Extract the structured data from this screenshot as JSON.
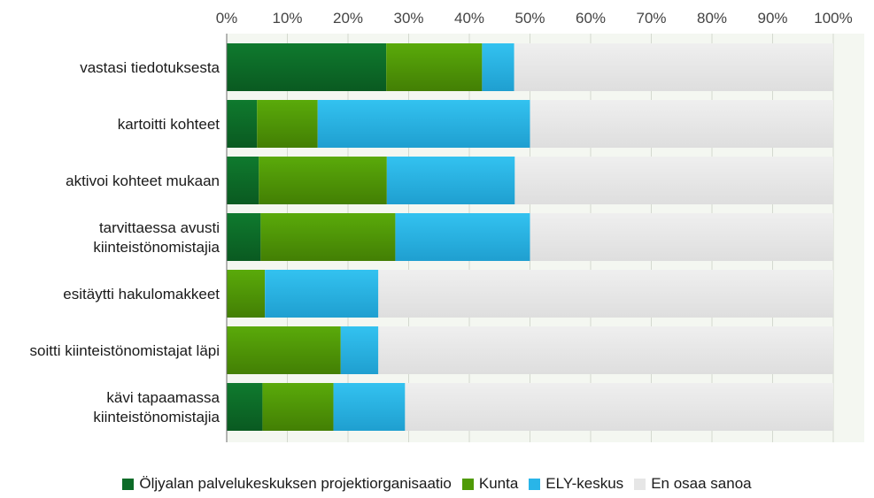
{
  "chart_data": {
    "type": "bar",
    "orientation": "horizontal",
    "stacked": true,
    "normalized": true,
    "title": "",
    "xlabel": "",
    "ylabel": "",
    "xlim": [
      0,
      100
    ],
    "x_ticks": [
      "0%",
      "10%",
      "20%",
      "30%",
      "40%",
      "50%",
      "60%",
      "70%",
      "80%",
      "90%",
      "100%"
    ],
    "grid": true,
    "legend_position": "bottom",
    "categories": [
      [
        "vastasi tiedotuksesta"
      ],
      [
        "kartoitti kohteet"
      ],
      [
        "aktivoi kohteet mukaan"
      ],
      [
        "tarvittaessa avusti",
        "kiinteistönomistajia"
      ],
      [
        "esitäytti hakulomakkeet"
      ],
      [
        "soitti kiinteistönomistajat läpi"
      ],
      [
        "kävi tapaamassa",
        "kiinteistönomistajia"
      ]
    ],
    "series": [
      {
        "name": "Öljyalan palvelukeskuksen projektiorganisaatio",
        "color": "#0c6b28",
        "values": [
          26.3,
          5.0,
          5.3,
          5.6,
          0,
          0,
          5.9
        ]
      },
      {
        "name": "Kunta",
        "color": "#4f9a06",
        "values": [
          15.8,
          10.0,
          21.1,
          22.2,
          6.3,
          18.8,
          11.7
        ]
      },
      {
        "name": "ELY-keskus",
        "color": "#29b5e8",
        "values": [
          5.3,
          35.0,
          21.1,
          22.2,
          18.7,
          6.2,
          11.8
        ]
      },
      {
        "name": "En osaa sanoa",
        "color": "#e6e6e6",
        "values": [
          52.6,
          50.0,
          52.5,
          50.0,
          75.0,
          75.0,
          70.6
        ]
      }
    ]
  }
}
